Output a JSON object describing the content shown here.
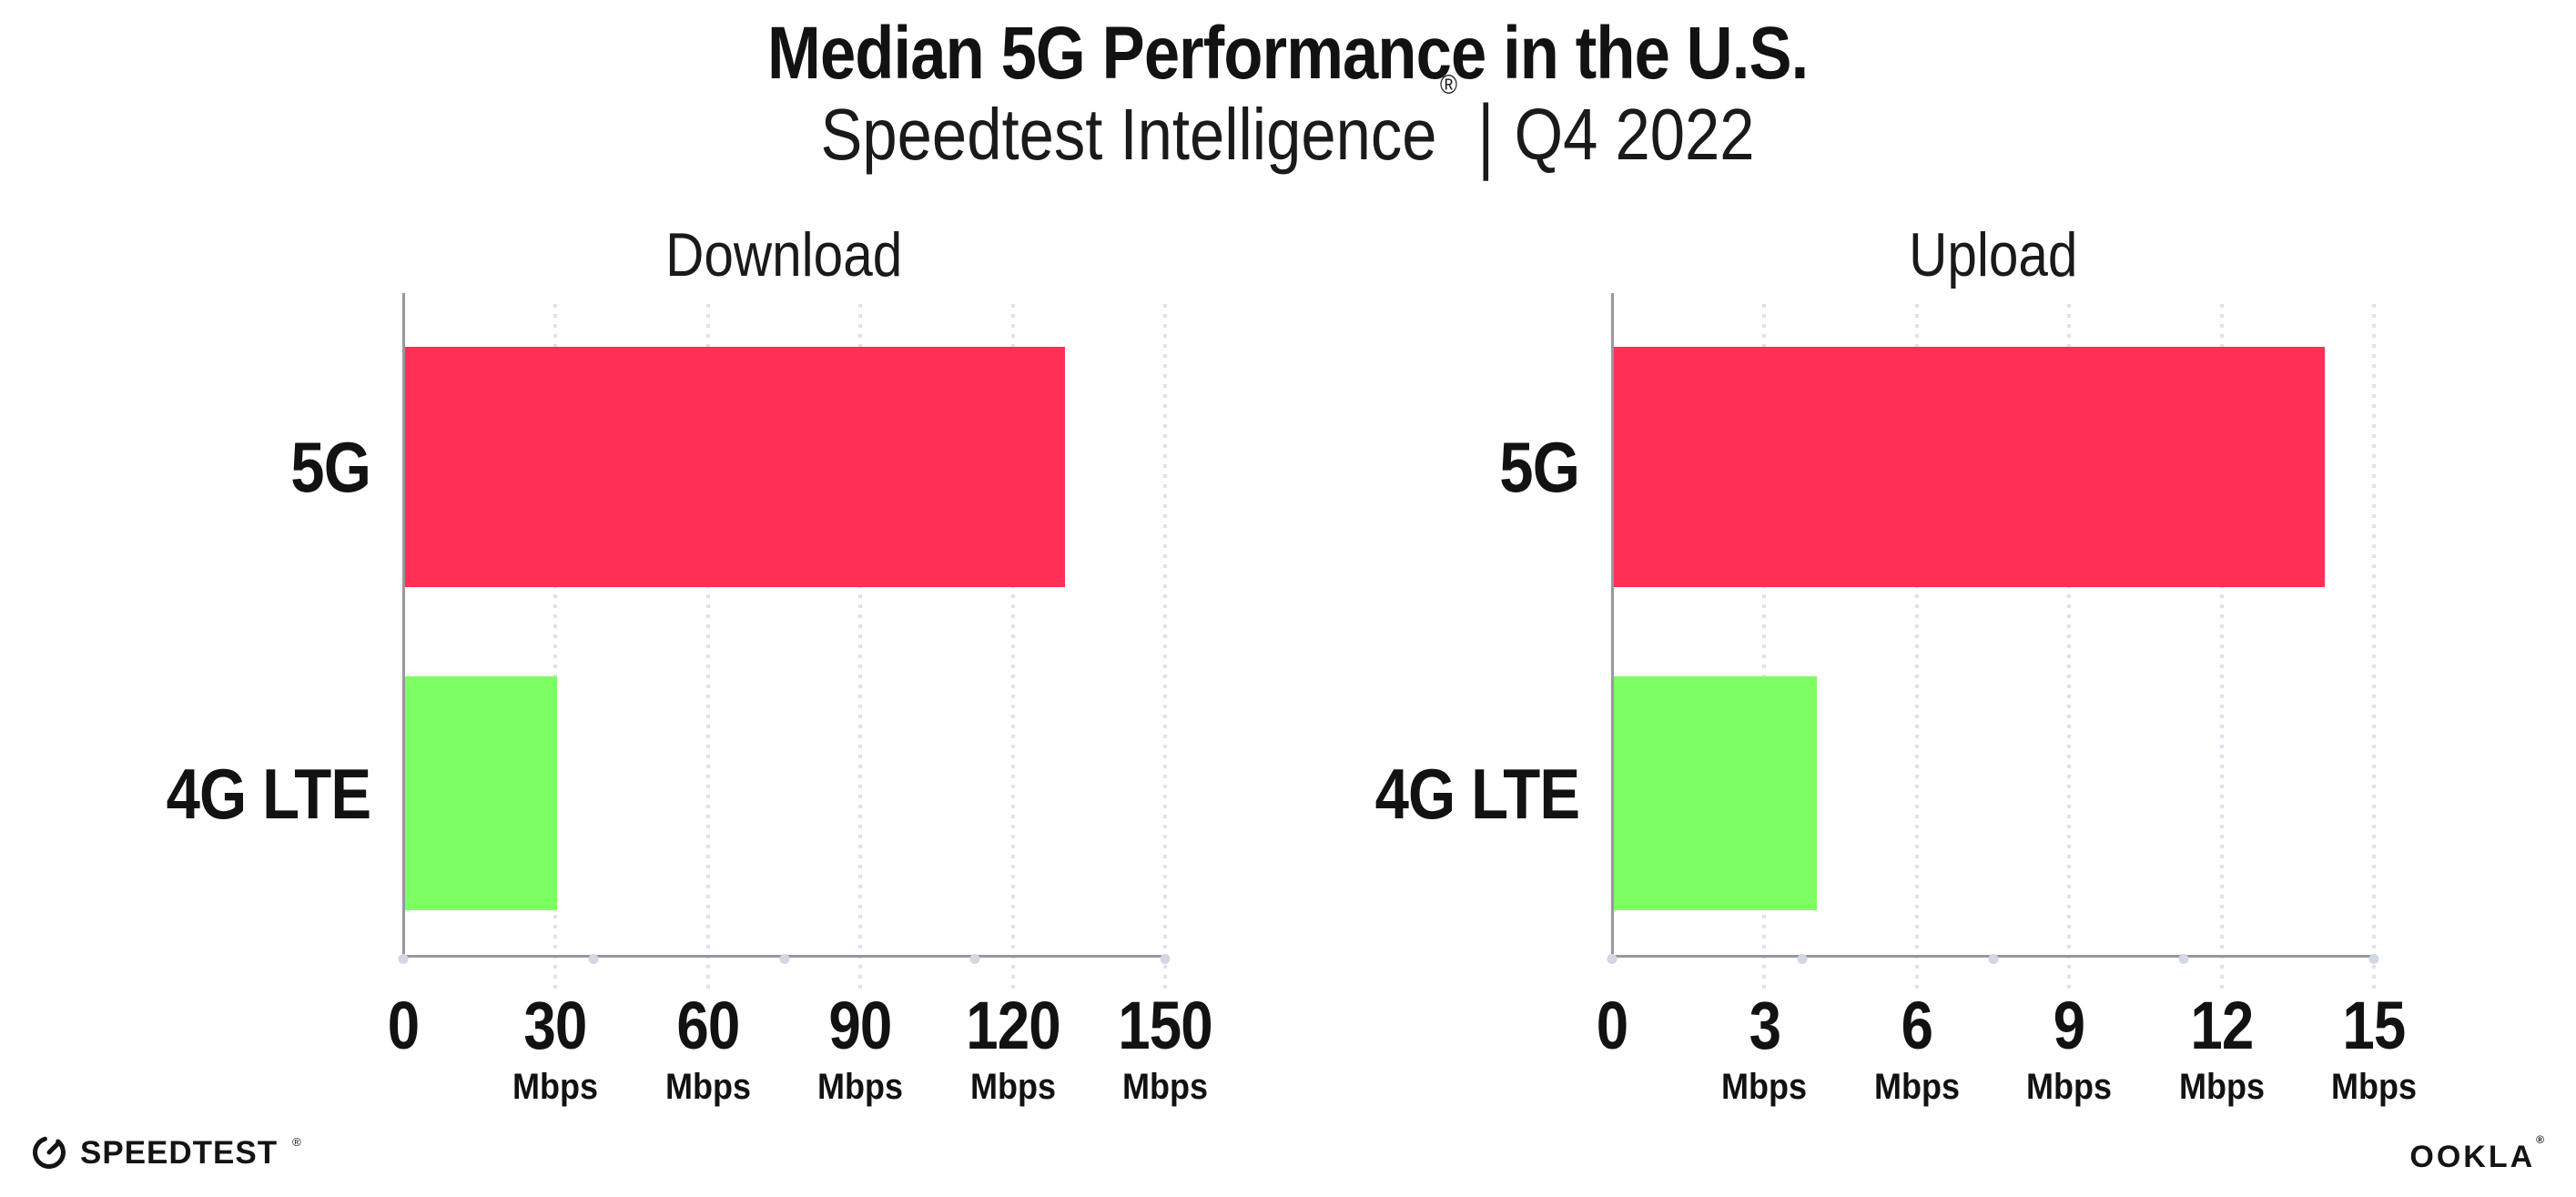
{
  "header": {
    "title": "Median 5G Performance in the U.S.",
    "subtitle_product": "Speedtest Intelligence",
    "subtitle_reg": "®",
    "subtitle_separator": "|",
    "subtitle_period": "Q4 2022"
  },
  "chart_data": [
    {
      "type": "bar",
      "orientation": "horizontal",
      "title": "Download",
      "categories": [
        "5G",
        "4G LTE"
      ],
      "values": [
        130,
        30
      ],
      "unit": "Mbps",
      "xlim": [
        0,
        150
      ],
      "xticks": [
        0,
        30,
        60,
        90,
        120,
        150
      ],
      "bar_colors": [
        "#FF2F56",
        "#7DFF64"
      ],
      "grid": "dotted-vertical",
      "legend": "none"
    },
    {
      "type": "bar",
      "orientation": "horizontal",
      "title": "Upload",
      "categories": [
        "5G",
        "4G LTE"
      ],
      "values": [
        14,
        4
      ],
      "unit": "Mbps",
      "xlim": [
        0,
        15
      ],
      "xticks": [
        0,
        3,
        6,
        9,
        12,
        15
      ],
      "bar_colors": [
        "#FF2F56",
        "#7DFF64"
      ],
      "grid": "dotted-vertical",
      "legend": "none"
    }
  ],
  "colors": {
    "bar_5g": "#FF2F56",
    "bar_4g_lte": "#7DFF64",
    "axis": "#97979D",
    "gridline": "#E1E1EC",
    "tick_dot": "#D2D7E3",
    "text": "#121212"
  },
  "footer": {
    "speedtest_text": "SPEEDTEST",
    "speedtest_reg": "®",
    "ookla_text": "OOKLA",
    "ookla_reg": "®"
  }
}
